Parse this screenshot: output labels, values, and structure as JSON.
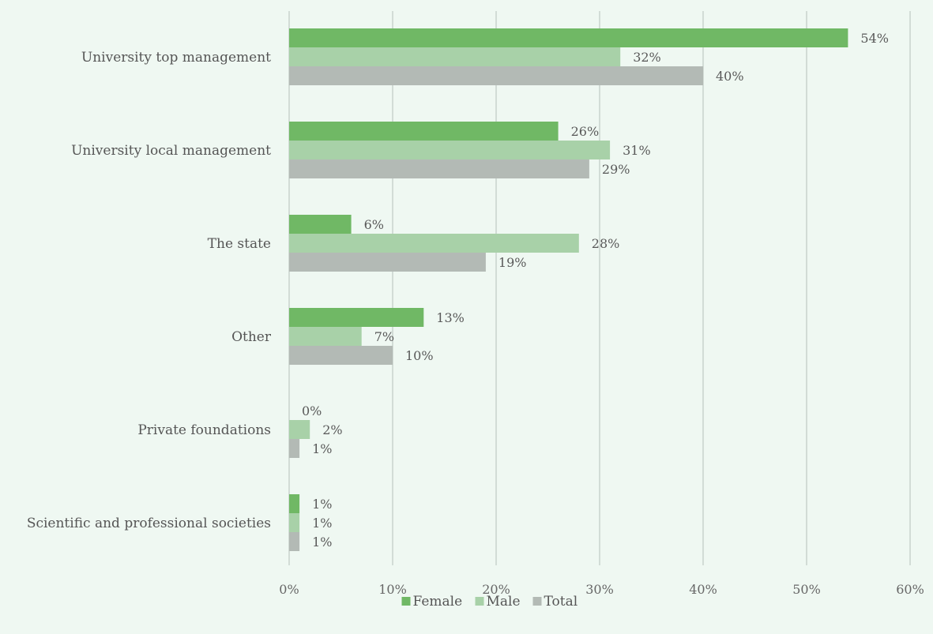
{
  "chart_data": {
    "type": "bar",
    "orientation": "horizontal",
    "title": "",
    "xlabel": "",
    "ylabel": "",
    "xlim": [
      0,
      60
    ],
    "x_ticks": [
      "0%",
      "10%",
      "20%",
      "30%",
      "40%",
      "50%",
      "60%"
    ],
    "grid": true,
    "legend_position": "bottom",
    "categories": [
      "University top management",
      "University local management",
      "The state",
      "Other",
      "Private foundations",
      "Scientific and professional societies"
    ],
    "series": [
      {
        "name": "Female",
        "color": "#70b865",
        "values": [
          54,
          26,
          6,
          13,
          0,
          1
        ],
        "labels": [
          "54%",
          "26%",
          "6%",
          "13%",
          "0%",
          "1%"
        ]
      },
      {
        "name": "Male",
        "color": "#a8d1a8",
        "values": [
          32,
          31,
          28,
          7,
          2,
          1
        ],
        "labels": [
          "32%",
          "31%",
          "28%",
          "7%",
          "2%",
          "1%"
        ]
      },
      {
        "name": "Total",
        "color": "#b3bab5",
        "values": [
          40,
          29,
          19,
          10,
          1,
          1
        ],
        "labels": [
          "40%",
          "29%",
          "19%",
          "10%",
          "1%",
          "1%"
        ]
      }
    ]
  }
}
